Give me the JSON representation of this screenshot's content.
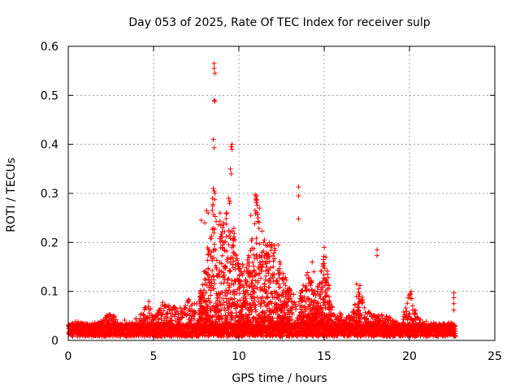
{
  "chart_data": {
    "type": "scatter",
    "title": "Day 053 of 2025, Rate Of TEC Index for receiver sulp",
    "xlabel": "GPS time / hours",
    "ylabel": "ROTI / TECUs",
    "xlim": [
      0,
      25
    ],
    "ylim": [
      0,
      0.6
    ],
    "x_ticks": [
      "0",
      "5",
      "10",
      "15",
      "20",
      "25"
    ],
    "y_ticks": [
      "0",
      "0.1",
      "0.2",
      "0.3",
      "0.4",
      "0.5",
      "0.6"
    ],
    "x_tick_values": [
      0,
      5,
      10,
      15,
      20,
      25
    ],
    "y_tick_values": [
      0,
      0.1,
      0.2,
      0.3,
      0.4,
      0.5,
      0.6
    ],
    "grid": true,
    "marker": "+",
    "series": [
      {
        "name": "ROTI",
        "color": "#ff0000",
        "background_band": {
          "x_start": 0.0,
          "x_end": 22.7,
          "y_low": 0.0,
          "y_high": 0.028
        },
        "envelope": [
          [
            0.0,
            0.035
          ],
          [
            0.5,
            0.04
          ],
          [
            1.0,
            0.035
          ],
          [
            1.5,
            0.035
          ],
          [
            2.0,
            0.045
          ],
          [
            2.4,
            0.055
          ],
          [
            3.0,
            0.045
          ],
          [
            3.5,
            0.04
          ],
          [
            4.0,
            0.045
          ],
          [
            4.5,
            0.07
          ],
          [
            4.7,
            0.085
          ],
          [
            5.0,
            0.05
          ],
          [
            5.5,
            0.08
          ],
          [
            6.0,
            0.07
          ],
          [
            6.5,
            0.07
          ],
          [
            7.0,
            0.085
          ],
          [
            7.5,
            0.08
          ],
          [
            8.0,
            0.15
          ],
          [
            8.5,
            0.3
          ],
          [
            9.0,
            0.25
          ],
          [
            9.5,
            0.29
          ],
          [
            10.0,
            0.15
          ],
          [
            10.5,
            0.17
          ],
          [
            11.0,
            0.29
          ],
          [
            11.5,
            0.2
          ],
          [
            12.0,
            0.2
          ],
          [
            12.5,
            0.15
          ],
          [
            13.0,
            0.1
          ],
          [
            13.5,
            0.09
          ],
          [
            14.0,
            0.14
          ],
          [
            14.5,
            0.1
          ],
          [
            15.0,
            0.18
          ],
          [
            15.5,
            0.06
          ],
          [
            16.0,
            0.055
          ],
          [
            16.5,
            0.05
          ],
          [
            17.0,
            0.11
          ],
          [
            17.5,
            0.06
          ],
          [
            18.0,
            0.05
          ],
          [
            18.5,
            0.055
          ],
          [
            19.0,
            0.045
          ],
          [
            19.5,
            0.04
          ],
          [
            20.0,
            0.1
          ],
          [
            20.5,
            0.045
          ],
          [
            21.0,
            0.04
          ],
          [
            21.5,
            0.035
          ],
          [
            22.0,
            0.035
          ],
          [
            22.5,
            0.04
          ],
          [
            22.7,
            0.035
          ]
        ],
        "outliers": [
          [
            8.55,
            0.565
          ],
          [
            8.55,
            0.555
          ],
          [
            8.6,
            0.545
          ],
          [
            8.55,
            0.49
          ],
          [
            8.6,
            0.488
          ],
          [
            8.5,
            0.41
          ],
          [
            8.55,
            0.393
          ],
          [
            9.6,
            0.4
          ],
          [
            9.55,
            0.395
          ],
          [
            9.6,
            0.39
          ],
          [
            9.5,
            0.35
          ],
          [
            9.55,
            0.34
          ],
          [
            8.5,
            0.31
          ],
          [
            8.55,
            0.305
          ],
          [
            8.6,
            0.3
          ],
          [
            8.45,
            0.29
          ],
          [
            9.4,
            0.29
          ],
          [
            9.45,
            0.28
          ],
          [
            13.5,
            0.313
          ],
          [
            13.5,
            0.295
          ],
          [
            13.5,
            0.248
          ],
          [
            10.95,
            0.297
          ],
          [
            11.05,
            0.295
          ],
          [
            11.0,
            0.29
          ],
          [
            11.05,
            0.285
          ],
          [
            8.1,
            0.265
          ],
          [
            8.0,
            0.24
          ],
          [
            8.2,
            0.26
          ],
          [
            9.3,
            0.26
          ],
          [
            11.2,
            0.27
          ],
          [
            11.5,
            0.205
          ],
          [
            12.3,
            0.195
          ],
          [
            8.9,
            0.26
          ],
          [
            9.1,
            0.24
          ],
          [
            10.7,
            0.255
          ],
          [
            7.8,
            0.245
          ],
          [
            18.1,
            0.185
          ],
          [
            18.1,
            0.173
          ],
          [
            15.0,
            0.19
          ],
          [
            15.1,
            0.17
          ],
          [
            14.3,
            0.16
          ],
          [
            14.4,
            0.14
          ],
          [
            16.9,
            0.115
          ],
          [
            17.1,
            0.112
          ],
          [
            20.1,
            0.1
          ],
          [
            20.05,
            0.095
          ],
          [
            22.6,
            0.097
          ],
          [
            22.6,
            0.087
          ],
          [
            22.6,
            0.075
          ],
          [
            22.6,
            0.062
          ]
        ]
      }
    ]
  }
}
